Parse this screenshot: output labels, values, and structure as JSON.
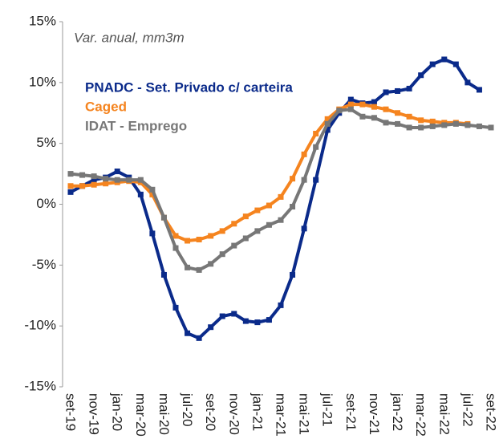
{
  "chart_data": {
    "type": "line",
    "subtitle": "Var. anual, mm3m",
    "categories": [
      "set-19",
      null,
      "nov-19",
      null,
      "jan-20",
      null,
      "mar-20",
      null,
      "mai-20",
      null,
      "jul-20",
      null,
      "set-20",
      null,
      "nov-20",
      null,
      "jan-21",
      null,
      "mar-21",
      null,
      "mai-21",
      null,
      "jul-21",
      null,
      "set-21",
      null,
      "nov-21",
      null,
      "jan-22",
      null,
      "mar-22",
      null,
      "mai-22",
      null,
      "jul-22",
      null,
      "set-22"
    ],
    "series": [
      {
        "name": "PNADC - Set. Privado c/ carteira",
        "color": "#0a2a8a",
        "values": [
          1.0,
          1.5,
          2.0,
          2.2,
          2.7,
          2.2,
          0.8,
          -2.4,
          -5.8,
          -8.5,
          -10.6,
          -11.0,
          -10.1,
          -9.2,
          -9.0,
          -9.6,
          -9.7,
          -9.5,
          -8.3,
          -5.8,
          -2.0,
          2.0,
          6.1,
          7.5,
          8.6,
          8.3,
          8.4,
          9.2,
          9.3,
          9.5,
          10.6,
          11.5,
          11.9,
          11.5,
          10.0,
          9.4,
          null
        ]
      },
      {
        "name": "Caged",
        "color": "#f5841f",
        "values": [
          1.5,
          1.5,
          1.6,
          1.7,
          1.8,
          1.9,
          1.8,
          0.8,
          -1.1,
          -2.6,
          -3.0,
          -2.9,
          -2.6,
          -2.2,
          -1.6,
          -1.0,
          -0.5,
          -0.1,
          0.6,
          2.1,
          4.1,
          5.8,
          7.0,
          7.8,
          8.2,
          8.2,
          8.0,
          7.8,
          7.5,
          7.2,
          6.9,
          6.8,
          6.7,
          6.7,
          6.6,
          null,
          null
        ]
      },
      {
        "name": "IDAT - Emprego",
        "color": "#777777",
        "values": [
          2.5,
          2.4,
          2.3,
          2.1,
          2.0,
          2.0,
          2.0,
          1.2,
          -1.1,
          -3.6,
          -5.2,
          -5.4,
          -4.9,
          -4.1,
          -3.4,
          -2.8,
          -2.2,
          -1.7,
          -1.3,
          -0.2,
          2.0,
          4.7,
          6.6,
          7.7,
          7.8,
          7.2,
          7.1,
          6.7,
          6.6,
          6.3,
          6.3,
          6.4,
          6.5,
          6.6,
          6.5,
          6.4,
          6.3
        ]
      }
    ],
    "ylim": [
      -15,
      15
    ],
    "yticks": [
      {
        "value": -15,
        "label": "-15%"
      },
      {
        "value": -10,
        "label": "-10%"
      },
      {
        "value": -5,
        "label": "-5%"
      },
      {
        "value": 0,
        "label": "0%"
      },
      {
        "value": 5,
        "label": "5%"
      },
      {
        "value": 10,
        "label": "10%"
      },
      {
        "value": 15,
        "label": "15%"
      }
    ],
    "grid": false
  }
}
